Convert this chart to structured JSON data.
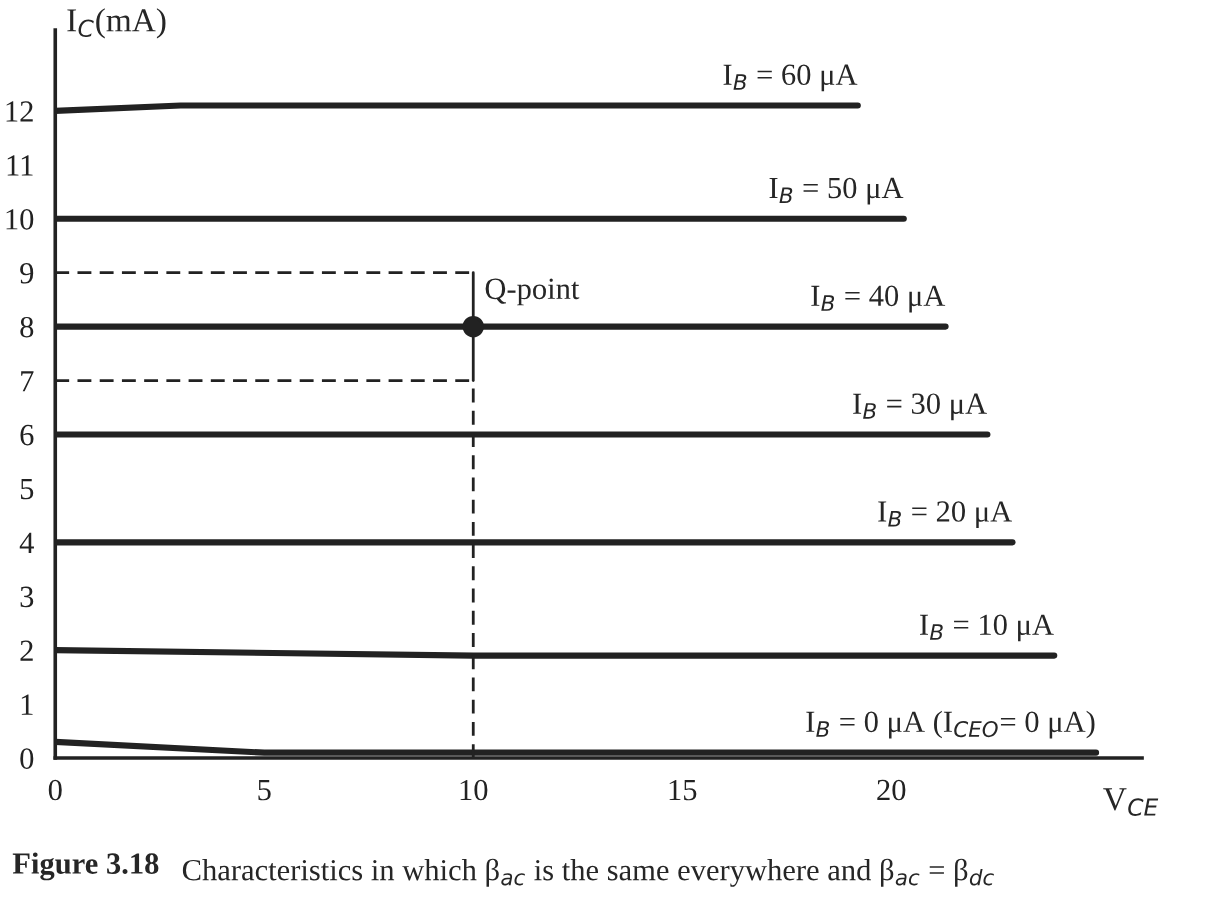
{
  "chart_data": {
    "type": "line",
    "xlabel": "V$_{CE}$",
    "ylabel": "I$_{C}$(mA)",
    "xlim": [
      0,
      26
    ],
    "ylim": [
      0,
      13.5
    ],
    "xticks": [
      0,
      5,
      10,
      15,
      20
    ],
    "yticks": [
      0,
      1,
      2,
      3,
      4,
      5,
      6,
      7,
      8,
      9,
      10,
      11,
      12
    ],
    "grid": false,
    "legend": false,
    "line_style": "solid",
    "marker": "none",
    "series": [
      {
        "name": "I$_{B}$ = 60 μA",
        "color": "#222222",
        "x": [
          0,
          3,
          19.2
        ],
        "values": [
          12,
          12.1,
          12.1
        ]
      },
      {
        "name": "I$_{B}$ = 50 μA",
        "color": "#222222",
        "x": [
          0,
          20.3
        ],
        "values": [
          10,
          10
        ]
      },
      {
        "name": "I$_{B}$ = 40 μA",
        "color": "#222222",
        "x": [
          0,
          21.3
        ],
        "values": [
          8,
          8
        ]
      },
      {
        "name": "I$_{B}$ = 30 μA",
        "color": "#222222",
        "x": [
          0,
          22.3
        ],
        "values": [
          6,
          6
        ]
      },
      {
        "name": "I$_{B}$ = 20 μA",
        "color": "#222222",
        "x": [
          0,
          22.9
        ],
        "values": [
          4,
          4
        ]
      },
      {
        "name": "I$_{B}$ = 10 μA",
        "color": "#222222",
        "x": [
          0,
          10,
          23.9
        ],
        "values": [
          2,
          1.9,
          1.9
        ]
      },
      {
        "name": "I$_{B}$ = 0 μA (I$_{CEO}$= 0 μA)",
        "color": "#222222",
        "x": [
          0,
          5,
          24.9
        ],
        "values": [
          0.3,
          0.1,
          0.1
        ]
      },
      {
        "color": "#222222",
        "x": [
          0,
          10
        ],
        "values": [
          9,
          9
        ],
        "line_style": "dashed"
      },
      {
        "color": "#222222",
        "x": [
          0,
          10
        ],
        "values": [
          7,
          7
        ],
        "line_style": "dashed"
      },
      {
        "color": "#222222",
        "x": [
          10,
          10
        ],
        "values": [
          0,
          7
        ],
        "line_style": "dashed"
      },
      {
        "color": "#222222",
        "x": [
          10,
          10
        ],
        "values": [
          7,
          9
        ]
      },
      {
        "type": "scatter",
        "color": "#222222",
        "x": [
          10
        ],
        "values": [
          8
        ],
        "marker": "circle"
      }
    ],
    "annotations": [
      {
        "text": "Q-point",
        "x": 10,
        "y": 8
      },
      "Figure 3.18",
      "Characteristics in which β$_{ac}$ is the same everywhere and β$_{ac}$ = β$_{dc}$"
    ]
  }
}
